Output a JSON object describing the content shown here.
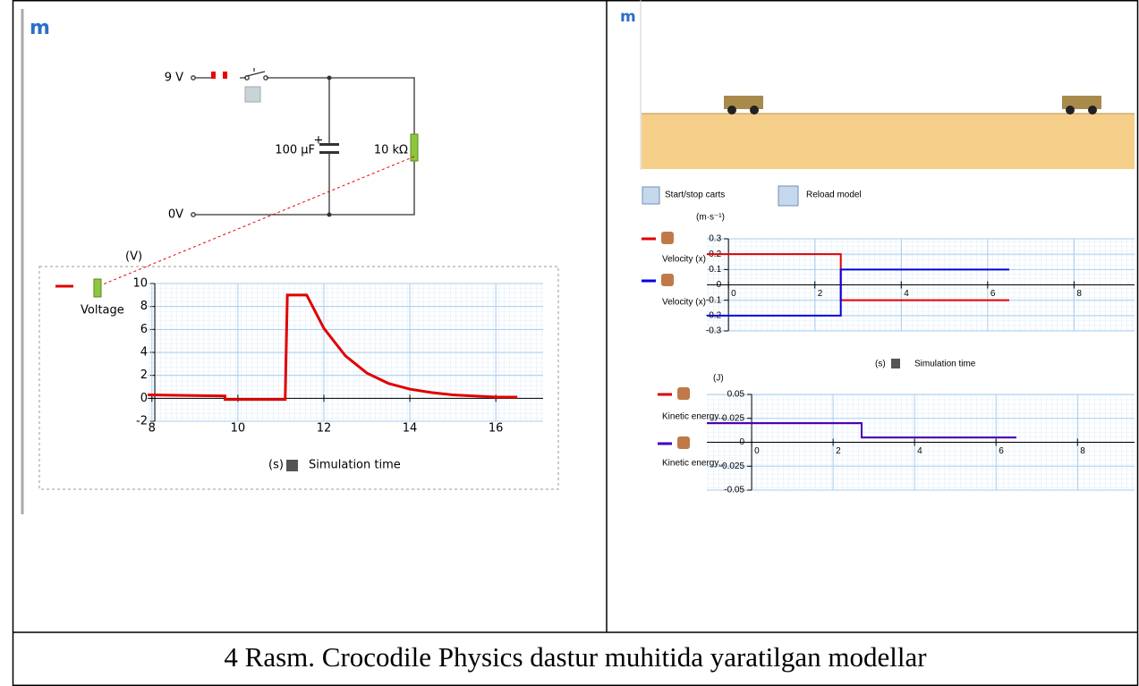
{
  "logos": [
    "m",
    "m"
  ],
  "circuit": {
    "supply": "9 V",
    "capacitor": "100 µF",
    "plus": "+",
    "resistor": "10 kΩ",
    "ground": "0V"
  },
  "controls": [
    "Start/stop carts",
    "Reload model"
  ],
  "caption": "4 Rasm. Crocodile Physics dastur muhitida yaratilgan modellar",
  "chart_data": [
    {
      "type": "line",
      "y_unit": "(V)",
      "x_unit": "(s)",
      "x_label": "Simulation time",
      "x": [
        7.9,
        9.7,
        9.7,
        11.1,
        11.15,
        11.6,
        12,
        12.5,
        13,
        13.5,
        14,
        14.5,
        15,
        15.5,
        16,
        16.5
      ],
      "series": [
        {
          "name": "Voltage",
          "color": "#e00000",
          "values": [
            0.3,
            0.2,
            -0.1,
            -0.1,
            9,
            9,
            6.1,
            3.7,
            2.2,
            1.3,
            0.8,
            0.5,
            0.3,
            0.2,
            0.1,
            0.1
          ]
        }
      ],
      "xlim": [
        7.9,
        17.1
      ],
      "ylim": [
        -2,
        10
      ],
      "xticks": [
        8,
        10,
        12,
        14,
        16
      ],
      "yticks": [
        -2,
        0,
        2,
        4,
        6,
        8,
        10
      ],
      "grid": true
    },
    {
      "type": "line",
      "y_unit": "(m·s⁻¹)",
      "x_unit": "(s)",
      "x_label": "Simulation time",
      "x": [
        -0.5,
        2.6,
        2.6,
        6.5
      ],
      "series": [
        {
          "name": "Velocity (x)",
          "color": "#e00000",
          "values": [
            0.2,
            0.2,
            -0.1,
            -0.1
          ]
        },
        {
          "name": "Velocity (x)",
          "color": "#0000e0",
          "values": [
            -0.2,
            -0.2,
            0.1,
            0.1
          ]
        }
      ],
      "xlim": [
        -0.5,
        9.4
      ],
      "ylim": [
        -0.3,
        0.3
      ],
      "xticks": [
        0,
        2,
        4,
        6,
        8
      ],
      "yticks": [
        -0.3,
        -0.2,
        -0.1,
        0,
        0.1,
        0.2,
        0.3
      ],
      "grid": true
    },
    {
      "type": "line",
      "y_unit": "(J)",
      "x": [
        -1.1,
        2.7,
        2.7,
        6.5
      ],
      "series": [
        {
          "name": "Kinetic energy...",
          "color": "#e00000",
          "values": [
            0.02,
            0.02,
            0.005,
            0.005
          ]
        },
        {
          "name": "Kinetic energy...",
          "color": "#4000c0",
          "values": [
            0.02,
            0.02,
            0.005,
            0.005
          ]
        }
      ],
      "xlim": [
        -1.1,
        9.4
      ],
      "ylim": [
        -0.05,
        0.05
      ],
      "xticks": [
        0,
        2,
        4,
        6,
        8
      ],
      "yticks": [
        -0.05,
        -0.025,
        0,
        0.025,
        0.05
      ],
      "grid": true
    }
  ]
}
